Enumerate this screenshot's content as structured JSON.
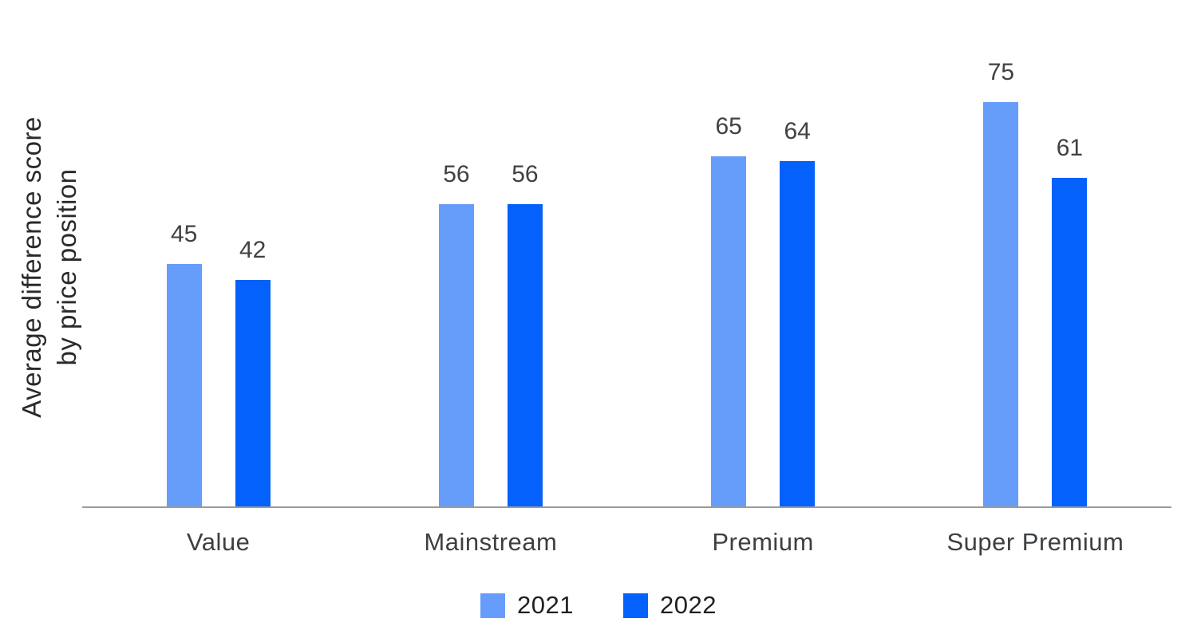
{
  "chart_data": {
    "type": "bar",
    "title": "",
    "categories": [
      "Value",
      "Mainstream",
      "Premium",
      "Super Premium"
    ],
    "series": [
      {
        "name": "2021",
        "color": "#669DFA",
        "values": [
          45,
          56,
          65,
          75
        ]
      },
      {
        "name": "2022",
        "color": "#0561FB",
        "values": [
          42,
          56,
          64,
          61
        ]
      }
    ],
    "xlabel": "",
    "ylabel": "Average difference score by price position",
    "ylabel_lines": [
      "Average difference score",
      "by price position"
    ],
    "ylim": [
      0,
      80
    ],
    "grid": false,
    "y_axis_ticks_visible": false,
    "data_labels": true,
    "legend_position": "bottom"
  },
  "colors": {
    "background": "#ffffff",
    "axis_line": "#9a9a9a",
    "data_label_text": "#414141",
    "category_label_text": "#3c4043",
    "ylabel_text": "#2a2a2a"
  }
}
